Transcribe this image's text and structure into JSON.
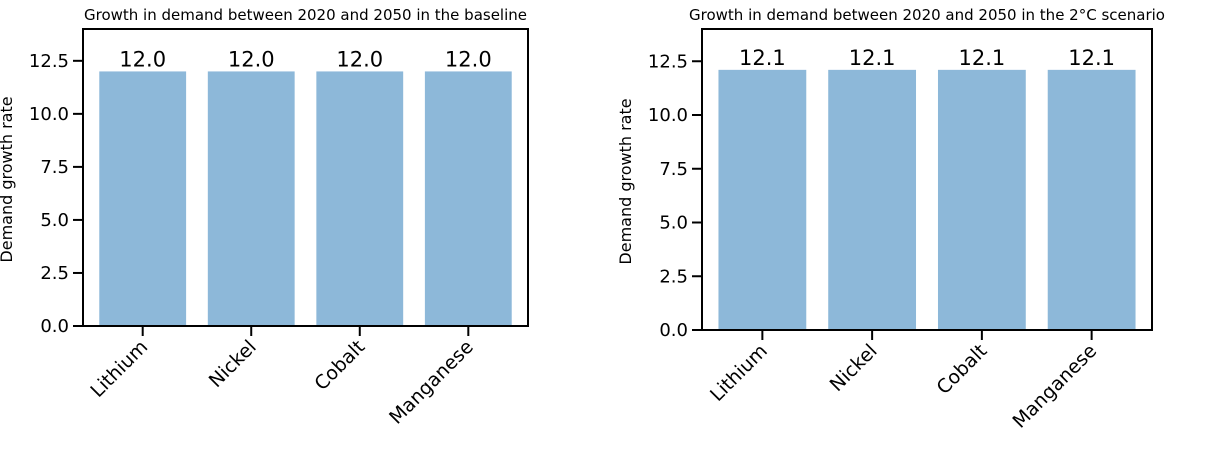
{
  "chart_data": [
    {
      "type": "bar",
      "title": "Growth in demand between 2020 and 2050 in the baseline",
      "ylabel": "Demand growth rate",
      "categories": [
        "Lithium",
        "Nickel",
        "Cobalt",
        "Manganese"
      ],
      "values": [
        12.0,
        12.0,
        12.0,
        12.0
      ],
      "data_labels": [
        "12.0",
        "12.0",
        "12.0",
        "12.0"
      ],
      "yticks": [
        0.0,
        2.5,
        5.0,
        7.5,
        10.0,
        12.5
      ],
      "ytick_labels": [
        "0.0",
        "2.5",
        "5.0",
        "7.5",
        "10.0",
        "12.5"
      ],
      "ylim": [
        0,
        14.0
      ],
      "bar_color": "#8db8d9",
      "grid": false
    },
    {
      "type": "bar",
      "title": "Growth in demand between 2020 and 2050 in the 2°C scenario",
      "ylabel": "Demand growth rate",
      "categories": [
        "Lithium",
        "Nickel",
        "Cobalt",
        "Manganese"
      ],
      "values": [
        12.1,
        12.1,
        12.1,
        12.1
      ],
      "data_labels": [
        "12.1",
        "12.1",
        "12.1",
        "12.1"
      ],
      "yticks": [
        0.0,
        2.5,
        5.0,
        7.5,
        10.0,
        12.5
      ],
      "ytick_labels": [
        "0.0",
        "2.5",
        "5.0",
        "7.5",
        "10.0",
        "12.5"
      ],
      "ylim": [
        0,
        14.0
      ],
      "bar_color": "#8db8d9",
      "grid": false
    }
  ]
}
